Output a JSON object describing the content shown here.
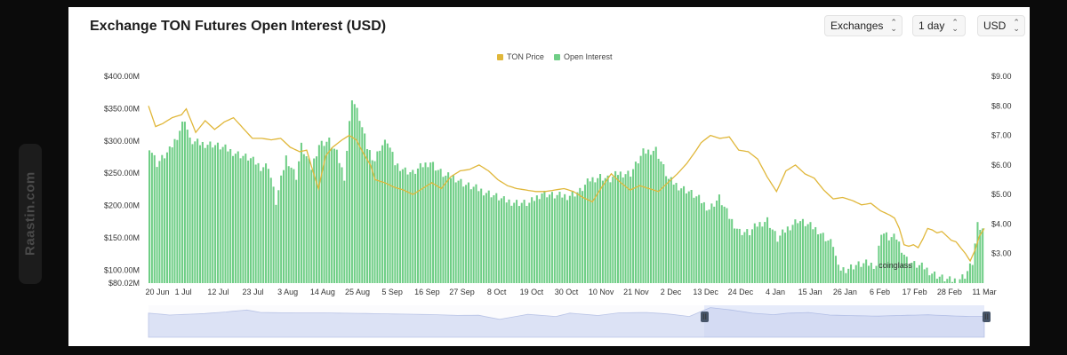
{
  "watermark_side": "Raastin.com",
  "title": "Exchange TON Futures Open Interest (USD)",
  "controls": {
    "exchanges": "Exchanges",
    "interval": "1 day",
    "currency": "USD"
  },
  "colors": {
    "price_line": "#e0b73a",
    "oi_bars": "#6fce86",
    "navigator_fill": "#dfe5f8",
    "navigator_line": "#8ea0d8"
  },
  "chart_data": {
    "type": "bar",
    "legend": [
      "TON Price",
      "Open Interest"
    ],
    "legend_position": "top-center",
    "watermark": "coinglass",
    "y_left_ticks": [
      "$400.00M",
      "$350.00M",
      "$300.00M",
      "$250.00M",
      "$200.00M",
      "$150.00M",
      "$100.00M",
      "$80.02M"
    ],
    "y_right_ticks": [
      "$9.00",
      "$8.00",
      "$7.00",
      "$6.00",
      "$5.00",
      "$4.00",
      "$3.00"
    ],
    "y_left_range": [
      80.02,
      400
    ],
    "y_right_range": [
      2.0,
      9.0
    ],
    "x_labels": [
      "20 Jun",
      "1 Jul",
      "12 Jul",
      "23 Jul",
      "3 Aug",
      "14 Aug",
      "25 Aug",
      "5 Sep",
      "16 Sep",
      "27 Sep",
      "8 Oct",
      "19 Oct",
      "30 Oct",
      "10 Nov",
      "21 Nov",
      "2 Dec",
      "13 Dec",
      "24 Dec",
      "4 Jan",
      "15 Jan",
      "26 Jan",
      "6 Feb",
      "17 Feb",
      "28 Feb",
      "11 Mar"
    ],
    "series": [
      {
        "name": "Open Interest",
        "unit": "$M",
        "key_points": [
          [
            0,
            292
          ],
          [
            3,
            265
          ],
          [
            8,
            285
          ],
          [
            11,
            308
          ],
          [
            14,
            335
          ],
          [
            16,
            300
          ],
          [
            20,
            296
          ],
          [
            25,
            295
          ],
          [
            30,
            288
          ],
          [
            35,
            280
          ],
          [
            40,
            272
          ],
          [
            44,
            260
          ],
          [
            47,
            262
          ],
          [
            50,
            205
          ],
          [
            54,
            275
          ],
          [
            58,
            245
          ],
          [
            60,
            292
          ],
          [
            64,
            258
          ],
          [
            67,
            295
          ],
          [
            71,
            300
          ],
          [
            74,
            280
          ],
          [
            77,
            245
          ],
          [
            80,
            368
          ],
          [
            83,
            335
          ],
          [
            86,
            290
          ],
          [
            89,
            270
          ],
          [
            91,
            290
          ],
          [
            94,
            300
          ],
          [
            97,
            265
          ],
          [
            101,
            255
          ],
          [
            104,
            250
          ],
          [
            108,
            262
          ],
          [
            111,
            268
          ],
          [
            114,
            255
          ],
          [
            117,
            245
          ],
          [
            120,
            245
          ],
          [
            125,
            232
          ],
          [
            130,
            225
          ],
          [
            135,
            218
          ],
          [
            140,
            208
          ],
          [
            145,
            205
          ],
          [
            150,
            203
          ],
          [
            155,
            220
          ],
          [
            160,
            215
          ],
          [
            165,
            215
          ],
          [
            170,
            222
          ],
          [
            174,
            240
          ],
          [
            178,
            245
          ],
          [
            182,
            240
          ],
          [
            185,
            250
          ],
          [
            190,
            250
          ],
          [
            195,
            282
          ],
          [
            200,
            287
          ],
          [
            205,
            240
          ],
          [
            209,
            230
          ],
          [
            213,
            222
          ],
          [
            217,
            210
          ],
          [
            221,
            195
          ],
          [
            225,
            212
          ],
          [
            229,
            182
          ],
          [
            233,
            160
          ],
          [
            237,
            158
          ],
          [
            240,
            170
          ],
          [
            244,
            178
          ],
          [
            248,
            148
          ],
          [
            252,
            165
          ],
          [
            256,
            178
          ],
          [
            260,
            170
          ],
          [
            264,
            162
          ],
          [
            268,
            146
          ],
          [
            270,
            140
          ],
          [
            272,
            102
          ],
          [
            275,
            102
          ],
          [
            279,
            108
          ],
          [
            283,
            110
          ],
          [
            287,
            108
          ],
          [
            289,
            160
          ],
          [
            292,
            150
          ],
          [
            295,
            150
          ],
          [
            299,
            117
          ],
          [
            302,
            109
          ],
          [
            306,
            104
          ],
          [
            309,
            96
          ],
          [
            313,
            88
          ],
          [
            316,
            84
          ],
          [
            319,
            85
          ],
          [
            322,
            92
          ],
          [
            325,
            112
          ],
          [
            327,
            168
          ],
          [
            329,
            162
          ]
        ]
      },
      {
        "name": "TON Price",
        "unit": "$",
        "key_points": [
          [
            0,
            8.0
          ],
          [
            3,
            7.3
          ],
          [
            6,
            7.4
          ],
          [
            10,
            7.6
          ],
          [
            14,
            7.7
          ],
          [
            16,
            7.9
          ],
          [
            20,
            7.1
          ],
          [
            24,
            7.5
          ],
          [
            28,
            7.2
          ],
          [
            32,
            7.45
          ],
          [
            36,
            7.6
          ],
          [
            40,
            7.25
          ],
          [
            44,
            6.9
          ],
          [
            48,
            6.9
          ],
          [
            52,
            6.85
          ],
          [
            56,
            6.9
          ],
          [
            60,
            6.6
          ],
          [
            64,
            6.45
          ],
          [
            67,
            6.5
          ],
          [
            70,
            5.7
          ],
          [
            72,
            5.2
          ],
          [
            75,
            6.3
          ],
          [
            78,
            6.6
          ],
          [
            82,
            6.85
          ],
          [
            85,
            7.0
          ],
          [
            88,
            6.85
          ],
          [
            91,
            6.4
          ],
          [
            94,
            6.0
          ],
          [
            96,
            5.5
          ],
          [
            100,
            5.4
          ],
          [
            104,
            5.25
          ],
          [
            108,
            5.15
          ],
          [
            112,
            5.0
          ],
          [
            116,
            5.2
          ],
          [
            120,
            5.4
          ],
          [
            124,
            5.2
          ],
          [
            128,
            5.6
          ],
          [
            132,
            5.8
          ],
          [
            136,
            5.85
          ],
          [
            140,
            6.0
          ],
          [
            144,
            5.8
          ],
          [
            148,
            5.5
          ],
          [
            152,
            5.3
          ],
          [
            156,
            5.2
          ],
          [
            160,
            5.15
          ],
          [
            164,
            5.1
          ],
          [
            168,
            5.1
          ],
          [
            172,
            5.15
          ],
          [
            176,
            5.2
          ],
          [
            180,
            5.1
          ],
          [
            184,
            4.9
          ],
          [
            188,
            4.75
          ],
          [
            192,
            5.25
          ],
          [
            196,
            5.7
          ],
          [
            200,
            5.4
          ],
          [
            204,
            5.15
          ],
          [
            208,
            5.3
          ],
          [
            212,
            5.2
          ],
          [
            216,
            5.1
          ],
          [
            220,
            5.4
          ],
          [
            224,
            5.7
          ],
          [
            228,
            6.05
          ],
          [
            232,
            6.5
          ],
          [
            234,
            6.75
          ],
          [
            238,
            7.0
          ],
          [
            242,
            6.9
          ],
          [
            246,
            6.95
          ],
          [
            250,
            6.5
          ],
          [
            254,
            6.45
          ],
          [
            258,
            6.2
          ],
          [
            262,
            5.6
          ],
          [
            266,
            5.1
          ],
          [
            270,
            5.8
          ],
          [
            274,
            6.0
          ],
          [
            278,
            5.7
          ],
          [
            282,
            5.55
          ],
          [
            286,
            5.15
          ],
          [
            290,
            4.85
          ],
          [
            294,
            4.9
          ],
          [
            298,
            4.8
          ],
          [
            302,
            4.65
          ],
          [
            306,
            4.7
          ],
          [
            310,
            4.45
          ],
          [
            314,
            4.3
          ],
          [
            316,
            4.2
          ],
          [
            318,
            3.85
          ],
          [
            320,
            3.3
          ],
          [
            322,
            3.25
          ],
          [
            324,
            3.3
          ],
          [
            326,
            3.2
          ],
          [
            328,
            3.5
          ],
          [
            330,
            3.85
          ],
          [
            332,
            3.8
          ],
          [
            334,
            3.7
          ],
          [
            336,
            3.75
          ],
          [
            338,
            3.6
          ],
          [
            340,
            3.45
          ],
          [
            342,
            3.4
          ],
          [
            344,
            3.2
          ],
          [
            346,
            3.0
          ],
          [
            348,
            2.75
          ],
          [
            350,
            3.1
          ],
          [
            352,
            3.6
          ],
          [
            354,
            3.85
          ]
        ]
      }
    ],
    "navigator": {
      "selected_window": "right portion",
      "handle_left": "II",
      "handle_right": "II"
    }
  }
}
